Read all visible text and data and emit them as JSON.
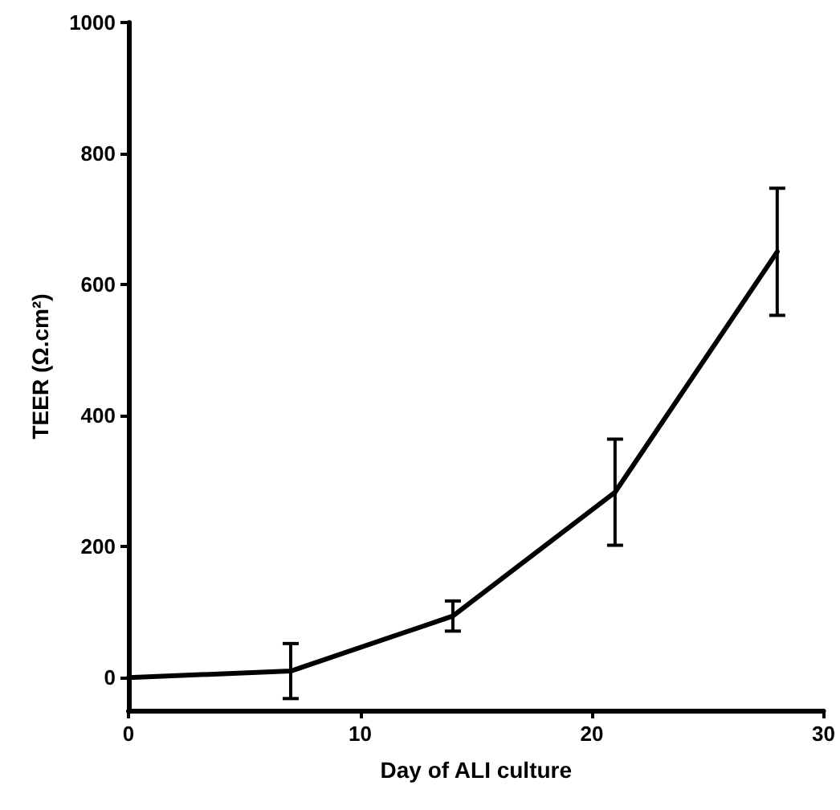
{
  "chart_data": {
    "type": "line",
    "xlabel": "Day of ALI culture",
    "ylabel": "TEER (Ω.cm²)",
    "x": [
      0,
      7,
      14,
      21,
      28
    ],
    "series": [
      {
        "color": "#000000",
        "values": [
          0,
          10,
          94,
          283,
          650
        ],
        "errors": [
          null,
          42,
          23,
          81,
          97
        ]
      }
    ],
    "xlim": [
      0,
      30
    ],
    "xticks": [
      0,
      10,
      20,
      30
    ],
    "ylim": [
      -50,
      1000
    ],
    "yticks": [
      0,
      200,
      400,
      600,
      800,
      1000
    ],
    "grid": false,
    "marker": "none",
    "line_style": "solid"
  }
}
